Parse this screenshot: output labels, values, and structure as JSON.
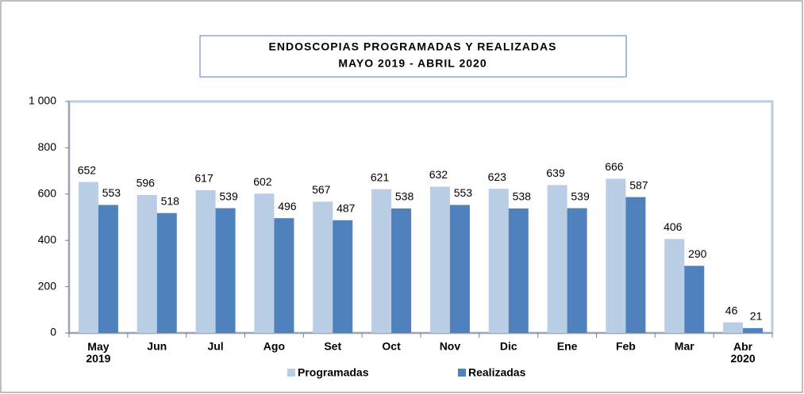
{
  "chart_data": {
    "type": "bar",
    "title": "ENDOSCOPIAS PROGRAMADAS Y REALIZADAS",
    "subtitle": "MAYO 2019 - ABRIL 2020",
    "categories": [
      "May 2019",
      "Jun",
      "Jul",
      "Ago",
      "Set",
      "Oct",
      "Nov",
      "Dic",
      "Ene",
      "Feb",
      "Mar",
      "Abr 2020"
    ],
    "series": [
      {
        "name": "Programadas",
        "color": "#b9cde5",
        "values": [
          652,
          596,
          617,
          602,
          567,
          621,
          632,
          623,
          639,
          666,
          406,
          46
        ]
      },
      {
        "name": "Realizadas",
        "color": "#4f81bd",
        "values": [
          553,
          518,
          539,
          496,
          487,
          538,
          553,
          538,
          539,
          587,
          290,
          21
        ]
      }
    ],
    "ylim": [
      0,
      1000
    ],
    "yticks": [
      0,
      200,
      400,
      600,
      800,
      {
        "value": 1000,
        "label": "1 000"
      }
    ],
    "grid": false,
    "legend": "bottom"
  }
}
